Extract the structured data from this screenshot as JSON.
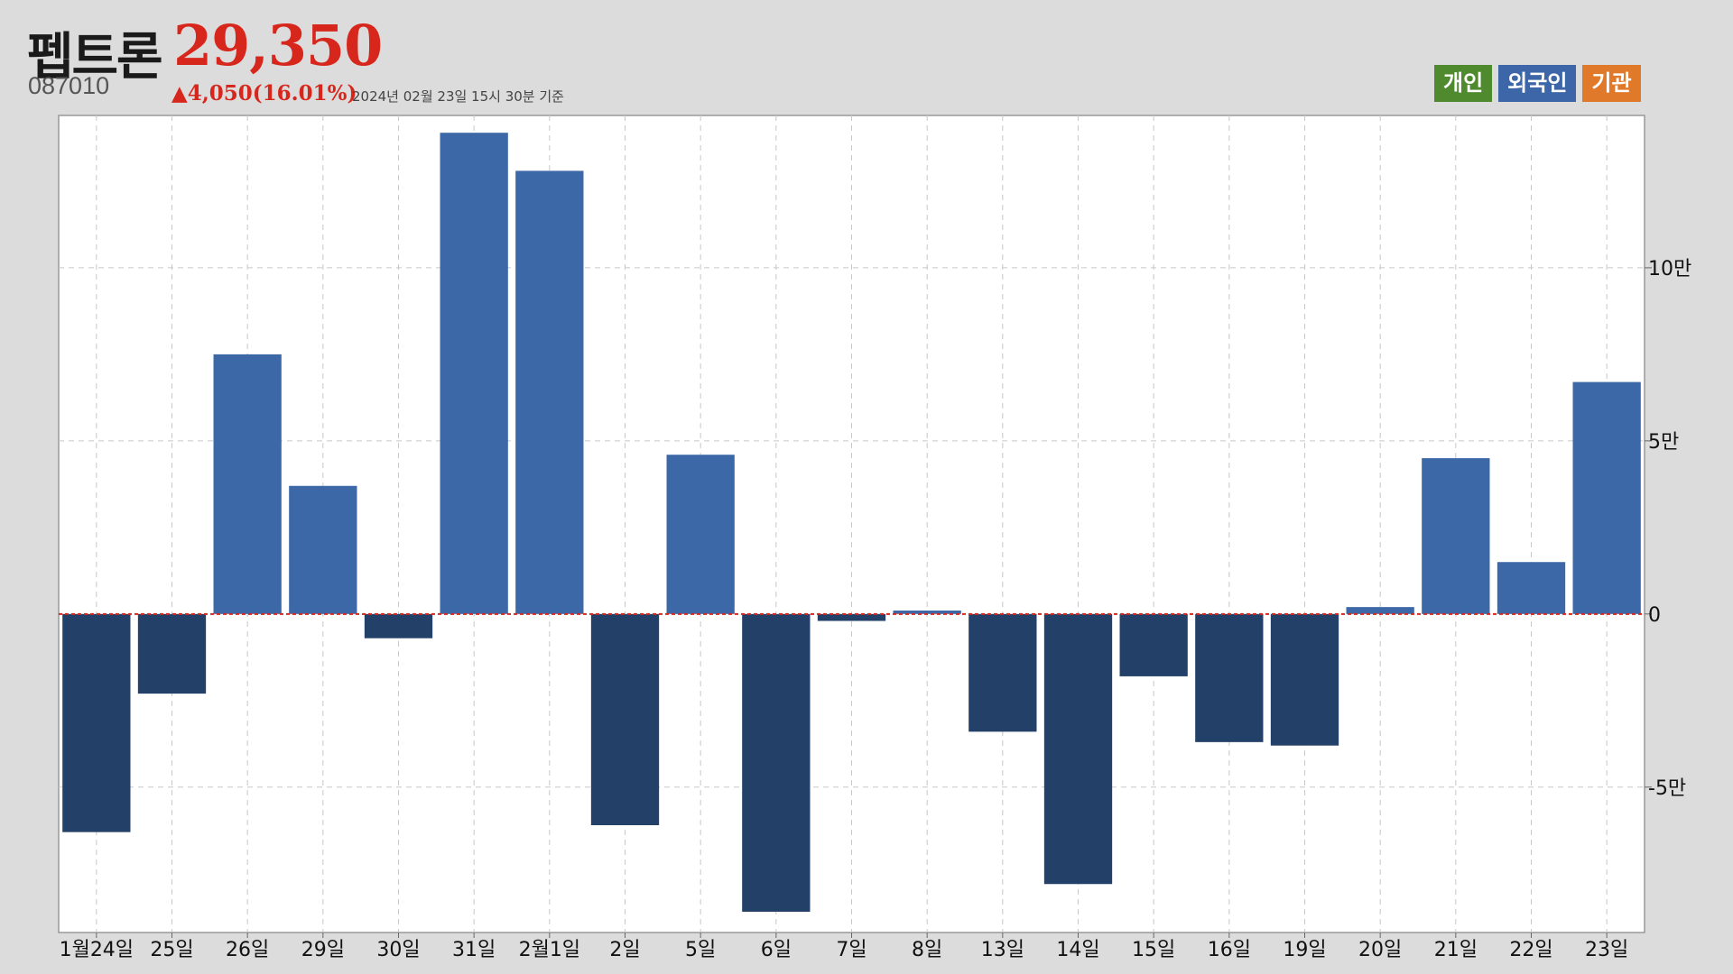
{
  "header": {
    "name": "펩트론",
    "price": "29,350",
    "code": "087010",
    "change": "▲4,050(16.01%)",
    "date": "2024년 02월 23일 15시 30분 기준"
  },
  "legend": {
    "personal": "개인",
    "foreign": "외국인",
    "institution": "기관"
  },
  "colors": {
    "positive": "#3d68a8",
    "negative": "#234168",
    "zero_line": "#d7261b",
    "price": "#d7261b",
    "personal": "#4f8a2e",
    "foreign": "#3d66a8",
    "institution": "#e07a2a"
  },
  "chart_data": {
    "type": "bar",
    "series": [
      {
        "name": "외국인",
        "values": [
          -63000,
          -23000,
          75000,
          37000,
          -7000,
          139000,
          128000,
          -61000,
          46000,
          -86000,
          -2000,
          1000,
          -34000,
          -78000,
          -18000,
          -37000,
          -38000,
          2000,
          45000,
          15000,
          67000
        ]
      }
    ],
    "categories": [
      "1월24일",
      "25일",
      "26일",
      "29일",
      "30일",
      "31일",
      "2월1일",
      "2일",
      "5일",
      "6일",
      "7일",
      "8일",
      "13일",
      "14일",
      "15일",
      "16일",
      "19일",
      "20일",
      "21일",
      "22일",
      "23일"
    ],
    "ylim": [
      -92000,
      144000
    ],
    "yticks": [
      {
        "value": 100000,
        "label": "10만"
      },
      {
        "value": 50000,
        "label": "5만"
      },
      {
        "value": 0,
        "label": "0"
      },
      {
        "value": -50000,
        "label": "-5만"
      }
    ],
    "grid": true
  }
}
